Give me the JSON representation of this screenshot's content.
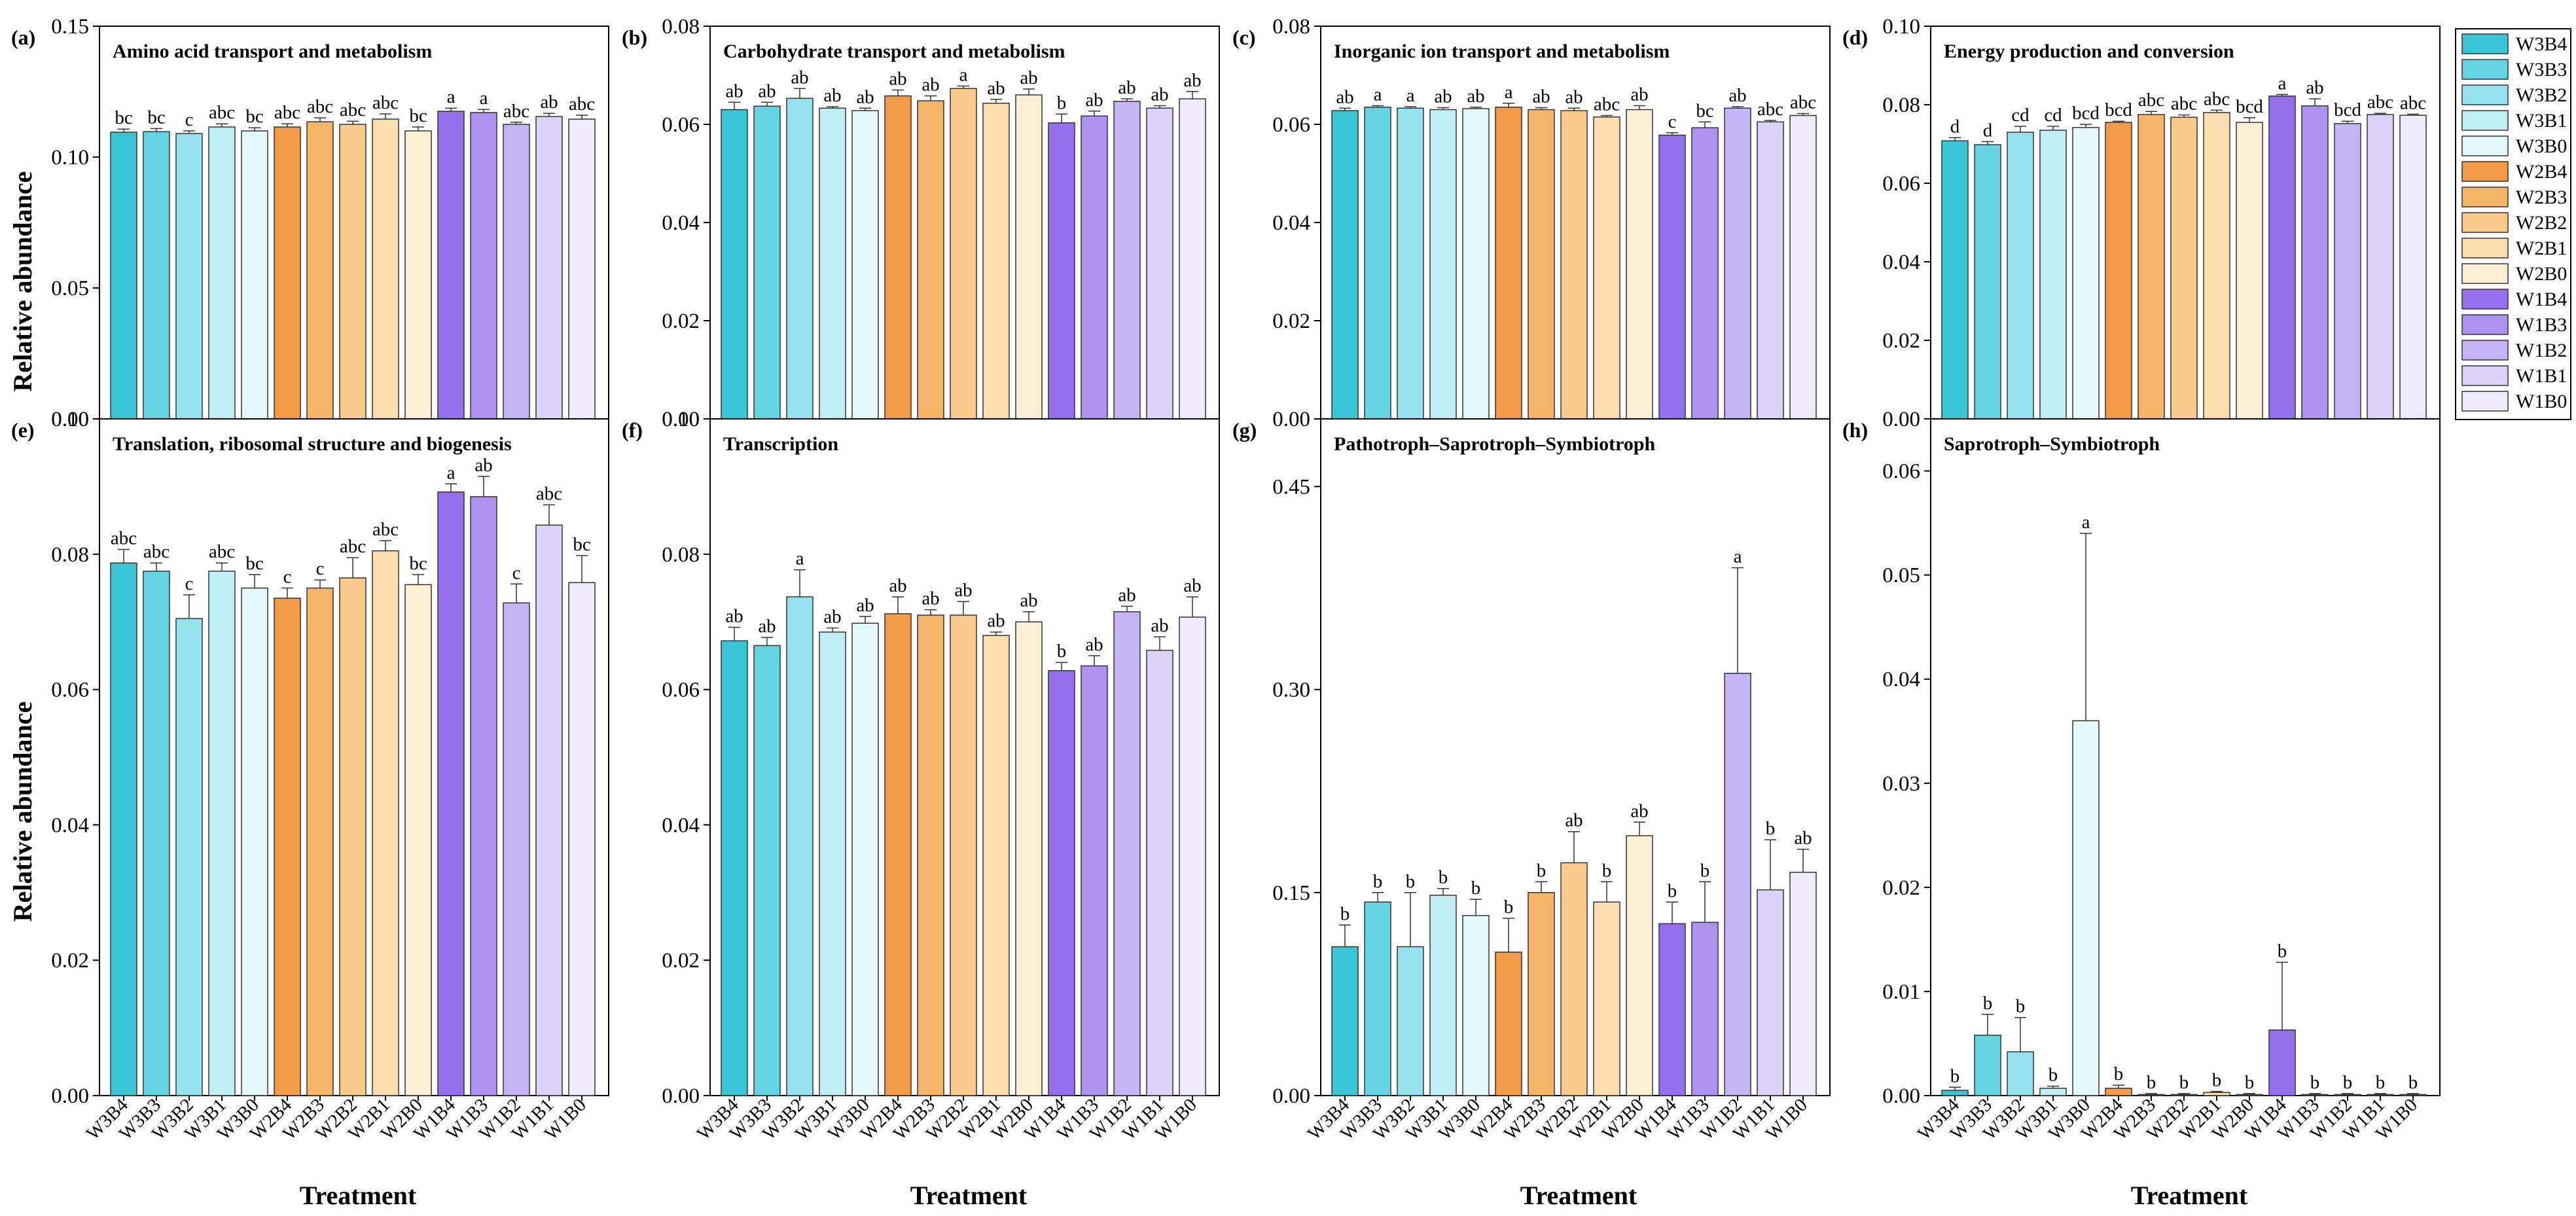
{
  "figure": {
    "ylabel": "Relative abundance",
    "xlabel": "Treatment"
  },
  "legend": {
    "entries": [
      {
        "name": "W3B4",
        "color": "#3ac5d6"
      },
      {
        "name": "W3B3",
        "color": "#64d4e3"
      },
      {
        "name": "W3B2",
        "color": "#94e2ed"
      },
      {
        "name": "W3B1",
        "color": "#c0eff5"
      },
      {
        "name": "W3B0",
        "color": "#e3f8fb"
      },
      {
        "name": "W2B4",
        "color": "#f29a46"
      },
      {
        "name": "W2B3",
        "color": "#f6b468"
      },
      {
        "name": "W2B2",
        "color": "#f9ca8b"
      },
      {
        "name": "W2B1",
        "color": "#fbddae"
      },
      {
        "name": "W2B0",
        "color": "#fdefd6"
      },
      {
        "name": "W1B4",
        "color": "#9470ee"
      },
      {
        "name": "W1B3",
        "color": "#ae92f2"
      },
      {
        "name": "W1B2",
        "color": "#c6b3f6"
      },
      {
        "name": "W1B1",
        "color": "#ddd3fa"
      },
      {
        "name": "W1B0",
        "color": "#efeafd"
      }
    ]
  },
  "chart_data": [
    {
      "type": "bar",
      "panel": "(a)",
      "title": "Amino acid transport and metabolism",
      "categories": [
        "W3B4",
        "W3B3",
        "W3B2",
        "W3B1",
        "W3B0",
        "W2B4",
        "W2B3",
        "W2B2",
        "W2B1",
        "W2B0",
        "W1B4",
        "W1B3",
        "W1B2",
        "W1B1",
        "W1B0"
      ],
      "values": [
        0.1095,
        0.1097,
        0.109,
        0.1115,
        0.11,
        0.1115,
        0.1135,
        0.1125,
        0.1145,
        0.11,
        0.1175,
        0.117,
        0.1125,
        0.1155,
        0.1145
      ],
      "errors": [
        0.0012,
        0.0012,
        0.001,
        0.0012,
        0.0012,
        0.0012,
        0.0015,
        0.0012,
        0.002,
        0.0015,
        0.0012,
        0.0012,
        0.0008,
        0.0012,
        0.0015
      ],
      "letters": [
        "bc",
        "bc",
        "c",
        "abc",
        "bc",
        "abc",
        "abc",
        "abc",
        "abc",
        "bc",
        "a",
        "a",
        "abc",
        "ab",
        "abc"
      ],
      "ylim": [
        0,
        0.15
      ],
      "yticks": [
        "0.00",
        "0.05",
        "0.10",
        "0.15"
      ]
    },
    {
      "type": "bar",
      "panel": "(b)",
      "title": "Carbohydrate transport and metabolism",
      "categories": [
        "W3B4",
        "W3B3",
        "W3B2",
        "W3B1",
        "W3B0",
        "W2B4",
        "W2B3",
        "W2B2",
        "W2B1",
        "W2B0",
        "W1B4",
        "W1B3",
        "W1B2",
        "W1B1",
        "W1B0"
      ],
      "values": [
        0.063,
        0.0637,
        0.0653,
        0.0633,
        0.0628,
        0.0658,
        0.0648,
        0.0673,
        0.0643,
        0.066,
        0.0603,
        0.0617,
        0.0647,
        0.0633,
        0.0652
      ],
      "errors": [
        0.0015,
        0.0008,
        0.002,
        0.0003,
        0.0005,
        0.0012,
        0.001,
        0.0005,
        0.0008,
        0.0012,
        0.0018,
        0.001,
        0.0005,
        0.0005,
        0.0015
      ],
      "letters": [
        "ab",
        "ab",
        "ab",
        "ab",
        "ab",
        "ab",
        "ab",
        "a",
        "ab",
        "ab",
        "b",
        "ab",
        "ab",
        "ab",
        "ab"
      ],
      "ylim": [
        0,
        0.08
      ],
      "yticks": [
        "0.00",
        "0.02",
        "0.04",
        "0.06",
        "0.08"
      ]
    },
    {
      "type": "bar",
      "panel": "(c)",
      "title": "Inorganic ion transport and metabolism",
      "categories": [
        "W3B4",
        "W3B3",
        "W3B2",
        "W3B1",
        "W3B0",
        "W2B4",
        "W2B3",
        "W2B2",
        "W2B1",
        "W2B0",
        "W1B4",
        "W1B3",
        "W1B2",
        "W1B1",
        "W1B0"
      ],
      "values": [
        0.0628,
        0.0635,
        0.0633,
        0.063,
        0.0632,
        0.0635,
        0.063,
        0.0628,
        0.0615,
        0.063,
        0.0578,
        0.0593,
        0.0633,
        0.0605,
        0.0618
      ],
      "errors": [
        0.0005,
        0.0003,
        0.0003,
        0.0004,
        0.0003,
        0.0008,
        0.0004,
        0.0005,
        0.0003,
        0.0008,
        0.0005,
        0.0012,
        0.0003,
        0.0003,
        0.0004
      ],
      "letters": [
        "ab",
        "a",
        "a",
        "ab",
        "ab",
        "a",
        "ab",
        "ab",
        "abc",
        "ab",
        "c",
        "bc",
        "ab",
        "abc",
        "abc"
      ],
      "ylim": [
        0,
        0.08
      ],
      "yticks": [
        "0.00",
        "0.02",
        "0.04",
        "0.06",
        "0.08"
      ]
    },
    {
      "type": "bar",
      "panel": "(d)",
      "title": "Energy production and conversion",
      "categories": [
        "W3B4",
        "W3B3",
        "W3B2",
        "W3B1",
        "W3B0",
        "W2B4",
        "W2B3",
        "W2B2",
        "W2B1",
        "W2B0",
        "W1B4",
        "W1B3",
        "W1B2",
        "W1B1",
        "W1B0"
      ],
      "values": [
        0.0708,
        0.0698,
        0.073,
        0.0735,
        0.0742,
        0.0755,
        0.0775,
        0.0768,
        0.078,
        0.0755,
        0.0822,
        0.0797,
        0.0752,
        0.0775,
        0.0773
      ],
      "errors": [
        0.0008,
        0.0008,
        0.0015,
        0.001,
        0.0008,
        0.0003,
        0.0008,
        0.0006,
        0.0006,
        0.0012,
        0.0004,
        0.0018,
        0.0006,
        0.0003,
        0.0003
      ],
      "letters": [
        "d",
        "d",
        "cd",
        "cd",
        "bcd",
        "bcd",
        "abc",
        "abc",
        "abc",
        "bcd",
        "a",
        "ab",
        "bcd",
        "abc",
        "abc"
      ],
      "ylim": [
        0,
        0.1
      ],
      "yticks": [
        "0.00",
        "0.02",
        "0.04",
        "0.06",
        "0.08",
        "0.10"
      ]
    },
    {
      "type": "bar",
      "panel": "(e)",
      "title": "Translation, ribosomal structure and biogenesis",
      "categories": [
        "W3B4",
        "W3B3",
        "W3B2",
        "W3B1",
        "W3B0",
        "W2B4",
        "W2B3",
        "W2B2",
        "W2B1",
        "W2B0",
        "W1B4",
        "W1B3",
        "W1B2",
        "W1B1",
        "W1B0"
      ],
      "values": [
        0.0787,
        0.0775,
        0.0705,
        0.0775,
        0.075,
        0.0735,
        0.075,
        0.0765,
        0.0805,
        0.0755,
        0.0892,
        0.0885,
        0.0728,
        0.0843,
        0.0758
      ],
      "errors": [
        0.002,
        0.0012,
        0.0035,
        0.0012,
        0.002,
        0.0015,
        0.0012,
        0.003,
        0.0015,
        0.0015,
        0.0012,
        0.003,
        0.0028,
        0.003,
        0.004
      ],
      "letters": [
        "abc",
        "abc",
        "c",
        "abc",
        "bc",
        "c",
        "c",
        "abc",
        "abc",
        "bc",
        "a",
        "ab",
        "c",
        "abc",
        "bc"
      ],
      "ylim": [
        0,
        0.1
      ],
      "yticks": [
        "0.00",
        "0.02",
        "0.04",
        "0.06",
        "0.08",
        "0.10"
      ]
    },
    {
      "type": "bar",
      "panel": "(f)",
      "title": "Transcription",
      "categories": [
        "W3B4",
        "W3B3",
        "W3B2",
        "W3B1",
        "W3B0",
        "W2B4",
        "W2B3",
        "W2B2",
        "W2B1",
        "W2B0",
        "W1B4",
        "W1B3",
        "W1B2",
        "W1B1",
        "W1B0"
      ],
      "values": [
        0.0672,
        0.0665,
        0.0737,
        0.0685,
        0.0698,
        0.0712,
        0.071,
        0.071,
        0.068,
        0.07,
        0.0628,
        0.0635,
        0.0715,
        0.0658,
        0.0707
      ],
      "errors": [
        0.002,
        0.0012,
        0.004,
        0.0006,
        0.001,
        0.0025,
        0.0008,
        0.002,
        0.0005,
        0.0015,
        0.0012,
        0.0015,
        0.0008,
        0.002,
        0.003
      ],
      "letters": [
        "ab",
        "ab",
        "a",
        "ab",
        "ab",
        "ab",
        "ab",
        "ab",
        "ab",
        "ab",
        "b",
        "ab",
        "ab",
        "ab",
        "ab"
      ],
      "ylim": [
        0,
        0.1
      ],
      "yticks": [
        "0.00",
        "0.02",
        "0.04",
        "0.06",
        "0.08",
        "0.10"
      ]
    },
    {
      "type": "bar",
      "panel": "(g)",
      "title": "Pathotroph–Saprotroph–Symbiotroph",
      "categories": [
        "W3B4",
        "W3B3",
        "W3B2",
        "W3B1",
        "W3B0",
        "W2B4",
        "W2B3",
        "W2B2",
        "W2B1",
        "W2B0",
        "W1B4",
        "W1B3",
        "W1B2",
        "W1B1",
        "W1B0"
      ],
      "values": [
        0.11,
        0.143,
        0.11,
        0.148,
        0.133,
        0.106,
        0.15,
        0.172,
        0.143,
        0.192,
        0.127,
        0.128,
        0.312,
        0.152,
        0.165
      ],
      "errors": [
        0.016,
        0.007,
        0.04,
        0.005,
        0.012,
        0.025,
        0.008,
        0.023,
        0.015,
        0.01,
        0.016,
        0.03,
        0.078,
        0.037,
        0.017
      ],
      "letters": [
        "b",
        "b",
        "b",
        "b",
        "b",
        "b",
        "b",
        "ab",
        "b",
        "ab",
        "b",
        "b",
        "a",
        "b",
        "ab"
      ],
      "ylim": [
        0,
        0.5
      ],
      "yticks": [
        "0.00",
        "0.15",
        "0.30",
        "0.45"
      ]
    },
    {
      "type": "bar",
      "panel": "(h)",
      "title": "Saprotroph–Symbiotroph",
      "categories": [
        "W3B4",
        "W3B3",
        "W3B2",
        "W3B1",
        "W3B0",
        "W2B4",
        "W2B3",
        "W2B2",
        "W2B1",
        "W2B0",
        "W1B4",
        "W1B3",
        "W1B2",
        "W1B1",
        "W1B0"
      ],
      "values": [
        0.0005,
        0.0058,
        0.0042,
        0.0007,
        0.036,
        0.0007,
        0.0001,
        0.0001,
        0.0003,
        0.0001,
        0.0063,
        0.0001,
        0.0001,
        0.0001,
        0.0001
      ],
      "errors": [
        0.0003,
        0.002,
        0.0033,
        0.0002,
        0.018,
        0.0003,
        0.0001,
        0.0001,
        0.0001,
        0.0001,
        0.0065,
        0.0001,
        0.0001,
        0.0001,
        0.0001
      ],
      "letters": [
        "b",
        "b",
        "b",
        "b",
        "a",
        "b",
        "b",
        "b",
        "b",
        "b",
        "b",
        "b",
        "b",
        "b",
        "b"
      ],
      "ylim": [
        0,
        0.065
      ],
      "yticks": [
        "0.00",
        "0.01",
        "0.02",
        "0.03",
        "0.04",
        "0.05",
        "0.06"
      ]
    }
  ]
}
